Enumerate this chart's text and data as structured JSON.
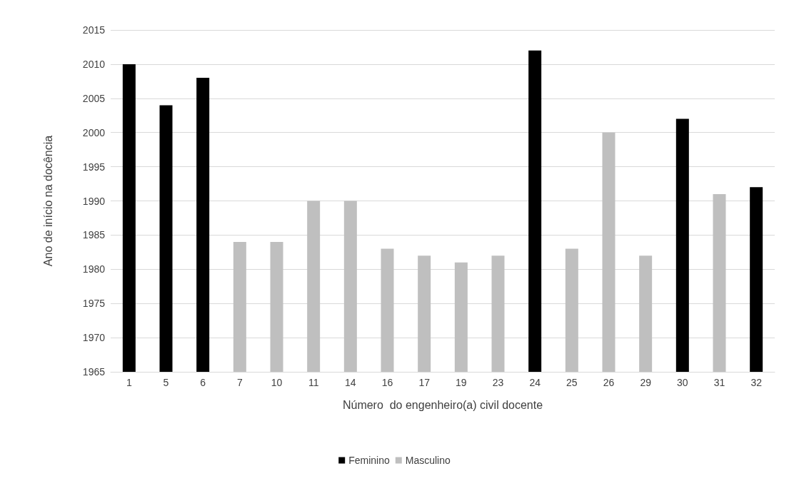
{
  "chart_data": {
    "type": "bar",
    "xlabel": "Número  do engenheiro(a) civil docente",
    "ylabel": "Ano de início na docência",
    "categories": [
      "1",
      "5",
      "6",
      "7",
      "10",
      "11",
      "14",
      "16",
      "17",
      "19",
      "23",
      "24",
      "25",
      "26",
      "29",
      "30",
      "31",
      "32"
    ],
    "series": [
      {
        "name": "Feminino",
        "color": "#000000",
        "values": [
          2010,
          2004,
          2008,
          null,
          null,
          null,
          null,
          null,
          null,
          null,
          null,
          2012,
          null,
          null,
          null,
          2002,
          null,
          1992
        ]
      },
      {
        "name": "Masculino",
        "color": "#bfbfbf",
        "values": [
          null,
          null,
          null,
          1984,
          1984,
          1990,
          1990,
          1983,
          1982,
          1981,
          1982,
          null,
          1983,
          2000,
          1982,
          null,
          1991,
          null
        ]
      }
    ],
    "ylim": [
      1965,
      2015
    ],
    "yticks": [
      1965,
      1970,
      1975,
      1980,
      1985,
      1990,
      1995,
      2000,
      2005,
      2010,
      2015
    ],
    "grid": "y",
    "legend": "bottom"
  }
}
